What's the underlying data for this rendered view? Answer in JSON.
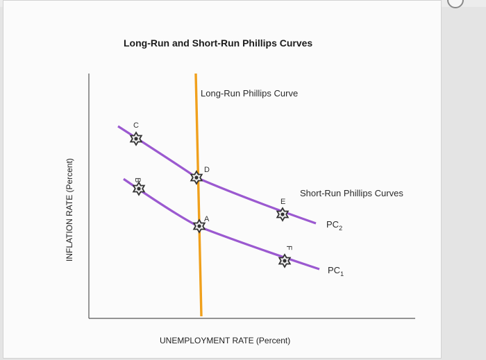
{
  "chart_data": {
    "type": "line",
    "title": "Long-Run and Short-Run Phillips Curves",
    "xlabel": "UNEMPLOYMENT RATE (Percent)",
    "ylabel": "INFLATION RATE (Percent)",
    "annotations": {
      "lrpc": "Long-Run Phillips Curve",
      "srpc": "Short-Run Phillips Curves"
    },
    "series": [
      {
        "name": "PC2",
        "label_main": "PC",
        "label_sub": "2",
        "color": "#9b59d0"
      },
      {
        "name": "PC1",
        "label_main": "PC",
        "label_sub": "1",
        "color": "#9b59d0"
      }
    ],
    "lrpc_color": "#f0a01c",
    "points": [
      {
        "label": "C"
      },
      {
        "label": "B"
      },
      {
        "label": "D"
      },
      {
        "label": "A"
      },
      {
        "label": "E"
      },
      {
        "label": "F"
      }
    ]
  }
}
